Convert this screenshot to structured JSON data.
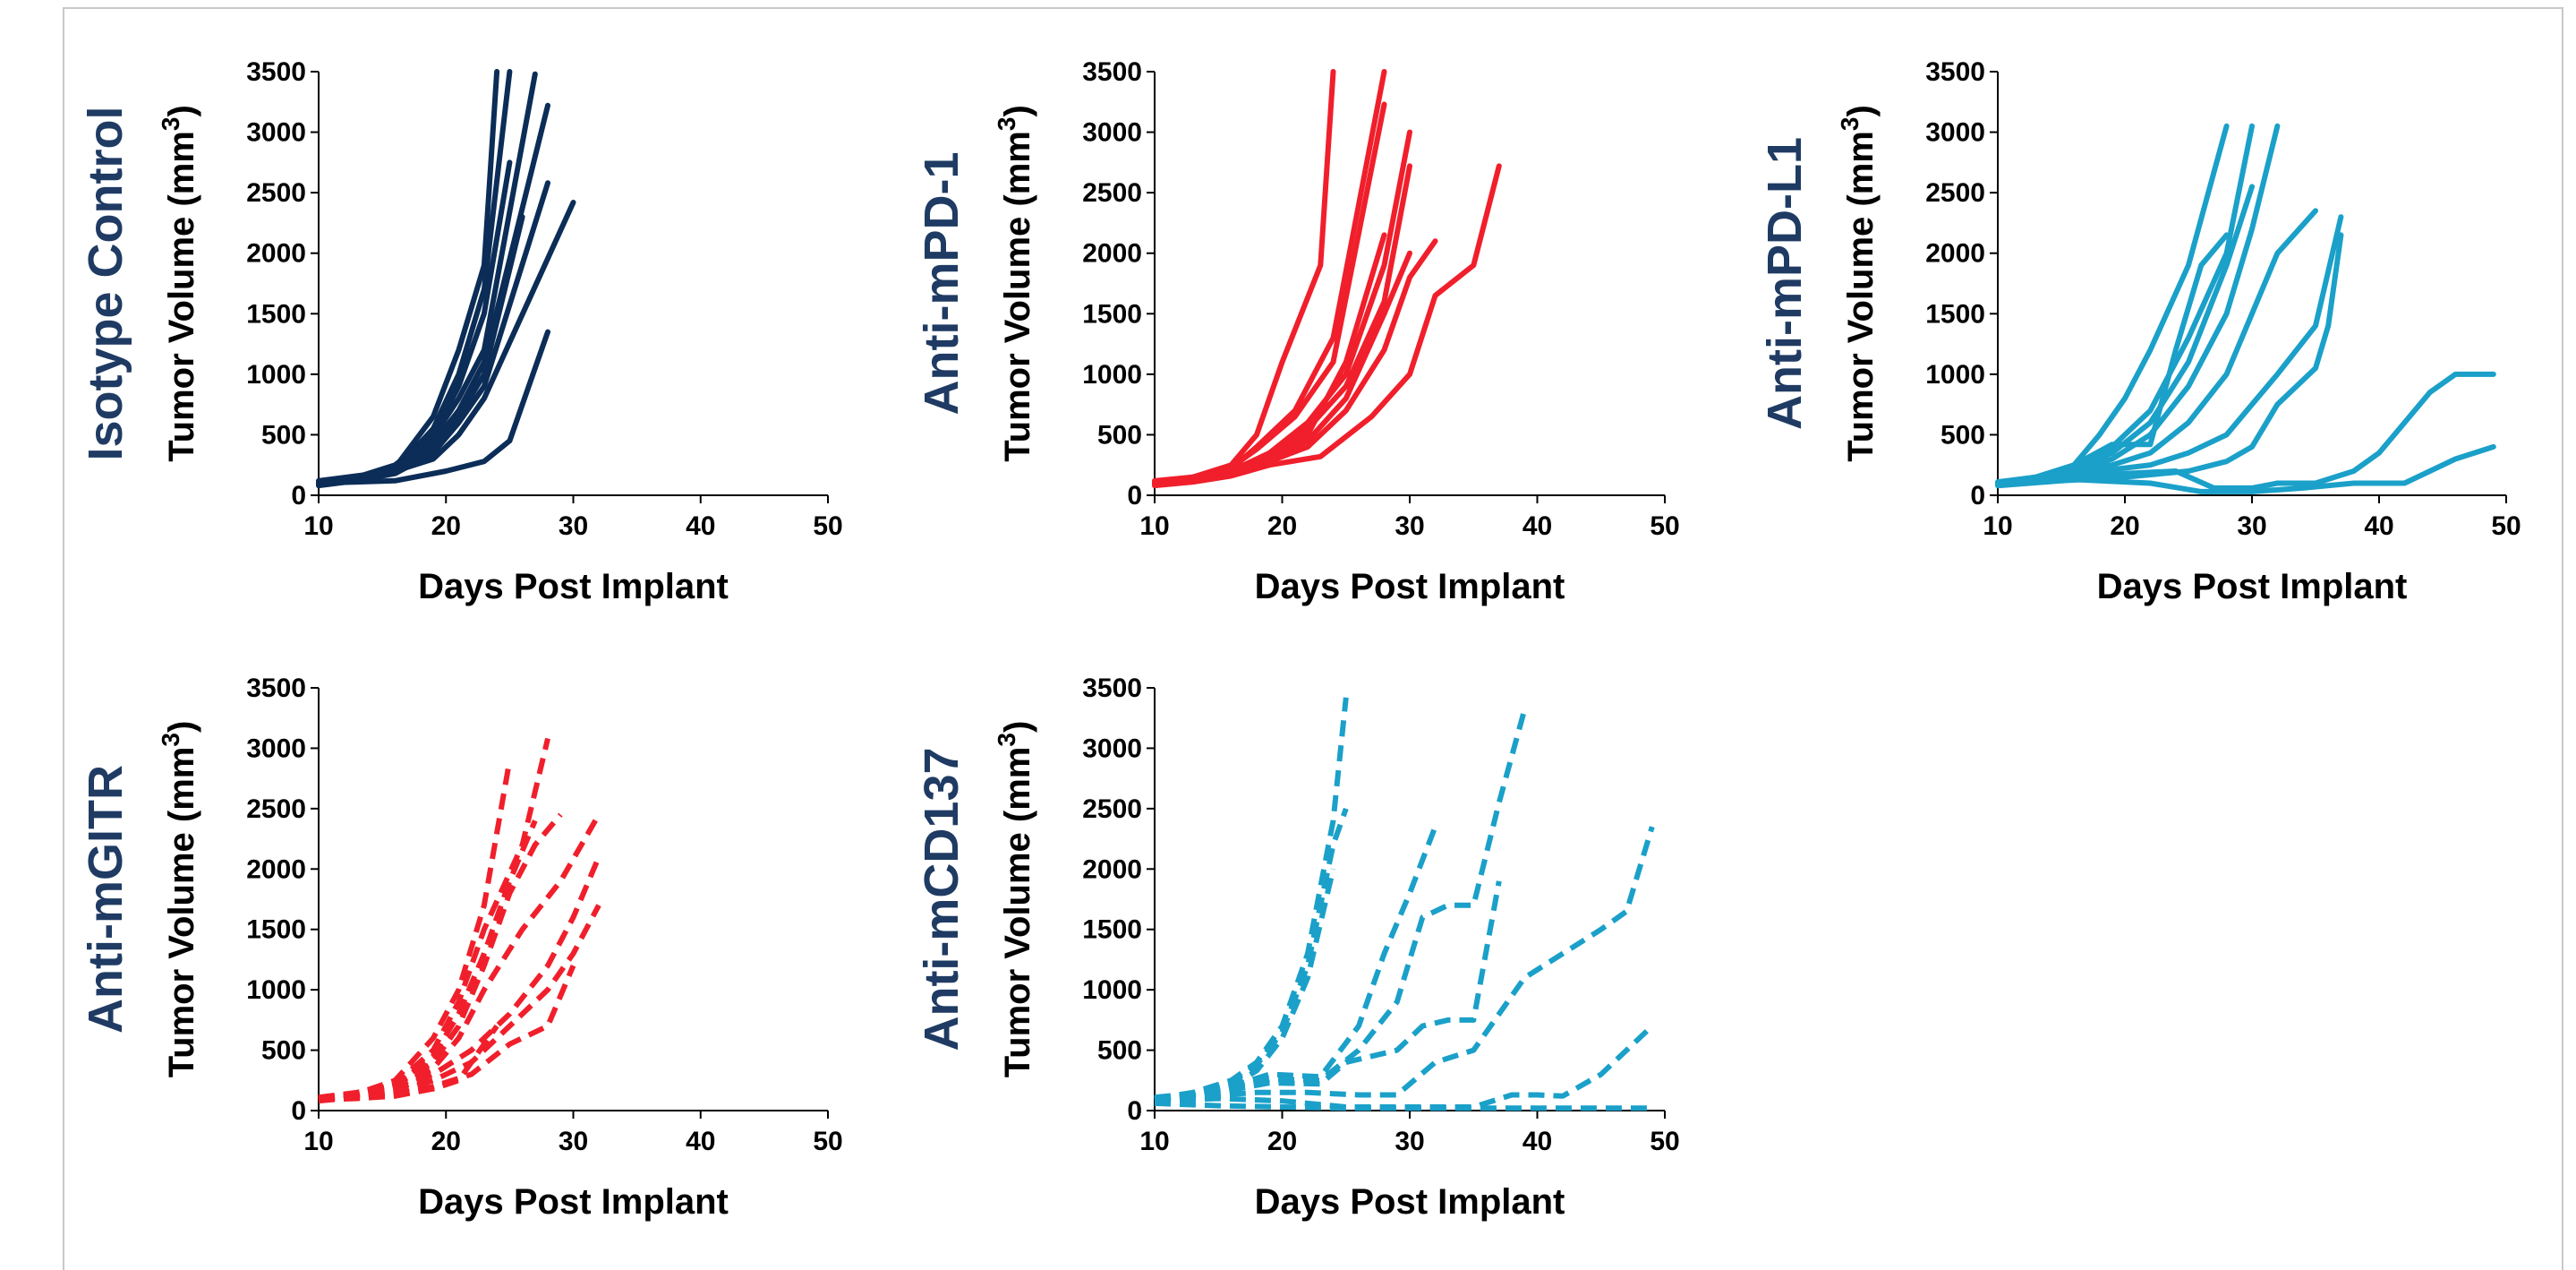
{
  "colors": {
    "navy": "#0b2d57",
    "red": "#f01f2b",
    "cyan": "#1aa0c9",
    "title": "#1f3b63"
  },
  "chart_data": [
    {
      "type": "line",
      "title": "Isotype Control",
      "xlabel": "Days Post Implant",
      "ylabel": "Tumor Volume (mm",
      "ylabel_sup": "3",
      "ylabel_close": ")",
      "xlim": [
        10,
        50
      ],
      "ylim": [
        0,
        3500
      ],
      "x_ticks": [
        "10",
        "20",
        "30",
        "40",
        "50"
      ],
      "y_ticks": [
        "0",
        "500",
        "1000",
        "1500",
        "2000",
        "2500",
        "3000",
        "3500"
      ],
      "color": "navy",
      "dashed": false,
      "series": [
        {
          "x": [
            10,
            13,
            16,
            19,
            21,
            23,
            24
          ],
          "y": [
            100,
            140,
            230,
            650,
            1200,
            1900,
            3500
          ]
        },
        {
          "x": [
            10,
            13,
            16,
            19,
            21,
            23,
            25
          ],
          "y": [
            90,
            130,
            210,
            550,
            1000,
            1700,
            3500
          ]
        },
        {
          "x": [
            10,
            13,
            16,
            19,
            21,
            23,
            25
          ],
          "y": [
            110,
            150,
            250,
            500,
            900,
            1500,
            2750
          ]
        },
        {
          "x": [
            10,
            13,
            16,
            19,
            21,
            23,
            27
          ],
          "y": [
            100,
            140,
            240,
            480,
            800,
            1200,
            3480
          ]
        },
        {
          "x": [
            10,
            13,
            16,
            19,
            21,
            23,
            28
          ],
          "y": [
            95,
            130,
            220,
            430,
            700,
            1100,
            3220
          ]
        },
        {
          "x": [
            10,
            13,
            16,
            19,
            21,
            23,
            26
          ],
          "y": [
            100,
            140,
            200,
            400,
            650,
            1000,
            2300
          ]
        },
        {
          "x": [
            10,
            13,
            16,
            19,
            21,
            23,
            28
          ],
          "y": [
            80,
            120,
            180,
            350,
            600,
            900,
            2580
          ]
        },
        {
          "x": [
            10,
            13,
            16,
            19,
            21,
            23,
            30
          ],
          "y": [
            120,
            160,
            200,
            300,
            500,
            800,
            2420
          ]
        },
        {
          "x": [
            10,
            13,
            16,
            20,
            23,
            25,
            28
          ],
          "y": [
            100,
            110,
            120,
            200,
            280,
            450,
            1350
          ]
        }
      ]
    },
    {
      "type": "line",
      "title": "Anti-mPD-1",
      "xlabel": "Days Post Implant",
      "ylabel": "Tumor Volume (mm",
      "ylabel_sup": "3",
      "ylabel_close": ")",
      "xlim": [
        10,
        50
      ],
      "ylim": [
        0,
        3500
      ],
      "x_ticks": [
        "10",
        "20",
        "30",
        "40",
        "50"
      ],
      "y_ticks": [
        "0",
        "500",
        "1000",
        "1500",
        "2000",
        "2500",
        "3000",
        "3500"
      ],
      "color": "red",
      "dashed": false,
      "series": [
        {
          "x": [
            10,
            13,
            16,
            18,
            20,
            23,
            24
          ],
          "y": [
            100,
            150,
            250,
            500,
            1100,
            1900,
            3500
          ]
        },
        {
          "x": [
            10,
            13,
            16,
            18,
            21,
            24,
            28
          ],
          "y": [
            100,
            140,
            220,
            400,
            700,
            1300,
            3500
          ]
        },
        {
          "x": [
            10,
            13,
            16,
            18,
            21,
            24,
            28
          ],
          "y": [
            110,
            150,
            230,
            380,
            650,
            1100,
            3230
          ]
        },
        {
          "x": [
            10,
            13,
            16,
            19,
            22,
            25,
            28,
            30
          ],
          "y": [
            90,
            130,
            200,
            350,
            600,
            1000,
            1900,
            3000
          ]
        },
        {
          "x": [
            10,
            13,
            16,
            19,
            22,
            25,
            28,
            30
          ],
          "y": [
            100,
            140,
            210,
            330,
            550,
            900,
            1600,
            2720
          ]
        },
        {
          "x": [
            10,
            13,
            16,
            19,
            22,
            25,
            28
          ],
          "y": [
            100,
            130,
            200,
            310,
            500,
            1100,
            2150
          ]
        },
        {
          "x": [
            10,
            13,
            16,
            19,
            22,
            25,
            28,
            30
          ],
          "y": [
            120,
            150,
            200,
            300,
            450,
            800,
            1500,
            2000
          ]
        },
        {
          "x": [
            10,
            13,
            16,
            19,
            22,
            25,
            28,
            30,
            32
          ],
          "y": [
            100,
            120,
            180,
            280,
            400,
            700,
            1200,
            1800,
            2100
          ]
        },
        {
          "x": [
            10,
            13,
            16,
            19,
            23,
            27,
            30,
            32,
            35,
            37
          ],
          "y": [
            80,
            110,
            160,
            250,
            320,
            650,
            1000,
            1650,
            1900,
            2720
          ]
        }
      ]
    },
    {
      "type": "line",
      "title": "Anti-mPD-L1",
      "xlabel": "Days Post Implant",
      "ylabel": "Tumor Volume (mm",
      "ylabel_sup": "3",
      "ylabel_close": ")",
      "xlim": [
        10,
        50
      ],
      "ylim": [
        0,
        3500
      ],
      "x_ticks": [
        "10",
        "20",
        "30",
        "40",
        "50"
      ],
      "y_ticks": [
        "0",
        "500",
        "1000",
        "1500",
        "2000",
        "2500",
        "3000",
        "3500"
      ],
      "color": "cyan",
      "dashed": false,
      "series": [
        {
          "x": [
            10,
            13,
            16,
            18,
            20,
            22,
            25,
            28
          ],
          "y": [
            100,
            150,
            250,
            500,
            800,
            1200,
            1900,
            3050
          ]
        },
        {
          "x": [
            10,
            13,
            16,
            19,
            22,
            25,
            28,
            30
          ],
          "y": [
            100,
            140,
            230,
            400,
            700,
            1300,
            2000,
            3050
          ]
        },
        {
          "x": [
            10,
            13,
            16,
            19,
            22,
            25,
            28,
            30
          ],
          "y": [
            110,
            150,
            220,
            350,
            600,
            1100,
            1900,
            2550
          ]
        },
        {
          "x": [
            10,
            13,
            16,
            19,
            22,
            25,
            28,
            30,
            32
          ],
          "y": [
            90,
            130,
            200,
            300,
            500,
            900,
            1500,
            2200,
            3050
          ]
        },
        {
          "x": [
            10,
            13,
            16,
            19,
            22,
            24,
            26,
            28
          ],
          "y": [
            100,
            150,
            250,
            420,
            420,
            1200,
            1900,
            2150
          ]
        },
        {
          "x": [
            10,
            13,
            16,
            19,
            22,
            25,
            28,
            30,
            32,
            35
          ],
          "y": [
            100,
            140,
            200,
            250,
            350,
            600,
            1000,
            1500,
            2000,
            2350
          ]
        },
        {
          "x": [
            10,
            14,
            18,
            22,
            25,
            28,
            30,
            32,
            35,
            37
          ],
          "y": [
            100,
            140,
            200,
            250,
            350,
            500,
            750,
            1000,
            1400,
            2300
          ]
        },
        {
          "x": [
            10,
            15,
            20,
            25,
            28,
            30,
            32,
            35,
            36,
            37
          ],
          "y": [
            80,
            120,
            150,
            200,
            280,
            400,
            750,
            1050,
            1400,
            2150
          ]
        },
        {
          "x": [
            10,
            16,
            20,
            24,
            27,
            30,
            32,
            35,
            38,
            40,
            42,
            44,
            46,
            49
          ],
          "y": [
            100,
            150,
            180,
            200,
            60,
            60,
            100,
            100,
            200,
            350,
            600,
            850,
            1000,
            1000
          ]
        },
        {
          "x": [
            10,
            16,
            22,
            26,
            30,
            34,
            38,
            42,
            46,
            49
          ],
          "y": [
            100,
            130,
            100,
            30,
            30,
            60,
            100,
            100,
            300,
            400
          ]
        }
      ]
    },
    {
      "type": "line",
      "title": "Anti-mGITR",
      "xlabel": "Days Post Implant",
      "ylabel": "Tumor Volume (mm",
      "ylabel_sup": "3",
      "ylabel_close": ")",
      "xlim": [
        10,
        50
      ],
      "ylim": [
        0,
        3500
      ],
      "x_ticks": [
        "10",
        "20",
        "30",
        "40",
        "50"
      ],
      "y_ticks": [
        "0",
        "500",
        "1000",
        "1500",
        "2000",
        "2500",
        "3000",
        "3500"
      ],
      "color": "red",
      "dashed": true,
      "series": [
        {
          "x": [
            10,
            13,
            16,
            19,
            21,
            23,
            25
          ],
          "y": [
            100,
            140,
            250,
            600,
            1000,
            1700,
            2900
          ]
        },
        {
          "x": [
            10,
            13,
            16,
            19,
            21,
            23,
            26,
            28
          ],
          "y": [
            100,
            130,
            220,
            500,
            900,
            1500,
            2200,
            3080
          ]
        },
        {
          "x": [
            10,
            13,
            16,
            19,
            21,
            23,
            25,
            27
          ],
          "y": [
            90,
            120,
            200,
            450,
            800,
            1300,
            1900,
            2400
          ]
        },
        {
          "x": [
            10,
            13,
            16,
            19,
            21,
            23,
            25,
            27,
            29
          ],
          "y": [
            110,
            150,
            210,
            400,
            700,
            1200,
            1800,
            2200,
            2450
          ]
        },
        {
          "x": [
            10,
            13,
            16,
            19,
            21,
            23,
            26,
            29,
            32
          ],
          "y": [
            100,
            130,
            190,
            350,
            600,
            1000,
            1500,
            1900,
            2450
          ]
        },
        {
          "x": [
            10,
            13,
            16,
            19,
            22,
            25,
            28,
            30,
            32
          ],
          "y": [
            100,
            120,
            170,
            300,
            500,
            800,
            1200,
            1600,
            2100
          ]
        },
        {
          "x": [
            10,
            13,
            16,
            19,
            22,
            25,
            28,
            30,
            32
          ],
          "y": [
            80,
            110,
            150,
            250,
            400,
            700,
            1000,
            1300,
            1700
          ]
        },
        {
          "x": [
            10,
            13,
            16,
            19,
            22,
            25,
            28,
            30
          ],
          "y": [
            100,
            110,
            130,
            200,
            300,
            550,
            700,
            1200
          ]
        },
        {
          "x": [
            10,
            13,
            16,
            19,
            21,
            24
          ],
          "y": [
            90,
            100,
            120,
            180,
            250,
            700
          ]
        }
      ]
    },
    {
      "type": "line",
      "title": "Anti-mCD137",
      "xlabel": "Days Post Implant",
      "ylabel": "Tumor Volume (mm",
      "ylabel_sup": "3",
      "ylabel_close": ")",
      "xlim": [
        10,
        50
      ],
      "ylim": [
        0,
        3500
      ],
      "x_ticks": [
        "10",
        "20",
        "30",
        "40",
        "50"
      ],
      "y_ticks": [
        "0",
        "500",
        "1000",
        "1500",
        "2000",
        "2500",
        "3000",
        "3500"
      ],
      "color": "cyan",
      "dashed": true,
      "series": [
        {
          "x": [
            10,
            13,
            16,
            18,
            20,
            22,
            24,
            25
          ],
          "y": [
            100,
            150,
            250,
            400,
            700,
            1300,
            2400,
            3420
          ]
        },
        {
          "x": [
            10,
            13,
            16,
            18,
            20,
            22,
            24,
            25
          ],
          "y": [
            100,
            140,
            230,
            380,
            650,
            1200,
            2200,
            2500
          ]
        },
        {
          "x": [
            10,
            13,
            16,
            18,
            20,
            22,
            24
          ],
          "y": [
            90,
            130,
            200,
            330,
            600,
            1100,
            2000
          ]
        },
        {
          "x": [
            10,
            13,
            16,
            19,
            23,
            26,
            28,
            30,
            32
          ],
          "y": [
            110,
            140,
            200,
            300,
            280,
            700,
            1300,
            1800,
            2350
          ]
        },
        {
          "x": [
            10,
            13,
            16,
            19,
            23,
            26,
            29,
            31,
            33,
            35,
            37,
            39
          ],
          "y": [
            100,
            130,
            190,
            260,
            250,
            500,
            900,
            1600,
            1700,
            1700,
            2550,
            3320
          ]
        },
        {
          "x": [
            10,
            13,
            16,
            19,
            23,
            25,
            29,
            31,
            33,
            35,
            37
          ],
          "y": [
            90,
            120,
            170,
            230,
            220,
            400,
            500,
            700,
            750,
            750,
            1900
          ]
        },
        {
          "x": [
            10,
            14,
            18,
            22,
            26,
            29,
            32,
            35,
            37,
            39,
            42,
            45,
            47,
            49
          ],
          "y": [
            100,
            120,
            150,
            150,
            130,
            130,
            400,
            500,
            800,
            1100,
            1300,
            1500,
            1650,
            2350
          ]
        },
        {
          "x": [
            10,
            15,
            20,
            25,
            30,
            35,
            38,
            40,
            42,
            45,
            47,
            49
          ],
          "y": [
            80,
            100,
            80,
            30,
            30,
            30,
            130,
            130,
            120,
            300,
            500,
            700
          ]
        },
        {
          "x": [
            10,
            15,
            20,
            25,
            30,
            35,
            40,
            45,
            49
          ],
          "y": [
            60,
            40,
            30,
            20,
            20,
            20,
            20,
            20,
            20
          ]
        }
      ]
    }
  ]
}
